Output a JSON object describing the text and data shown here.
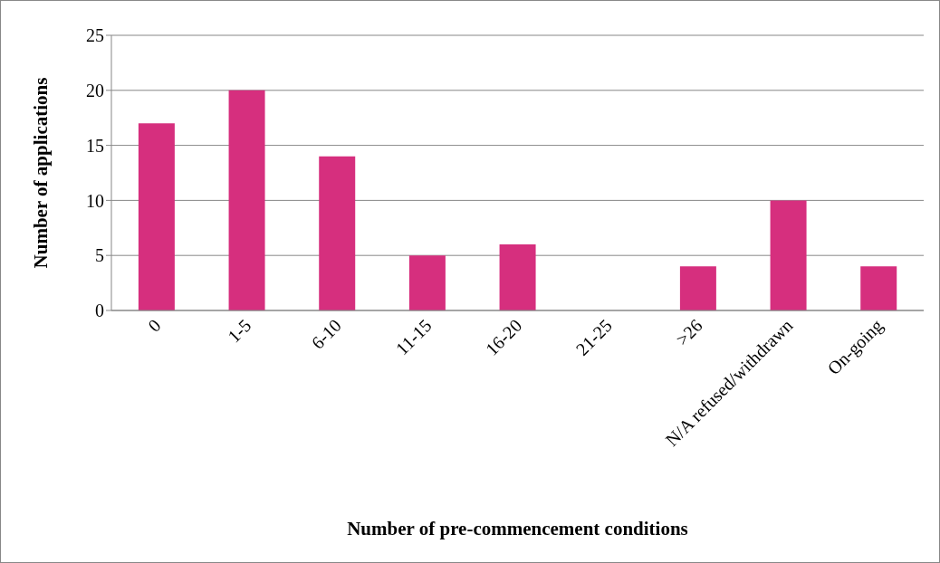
{
  "chart_data": {
    "type": "bar",
    "xlabel": "Number of pre-commencement conditions",
    "ylabel": "Number of applications",
    "categories": [
      "0",
      "1-5",
      "6-10",
      "11-15",
      "16-20",
      "21-25",
      ">26",
      "N/A refused/withdrawn",
      "On-going"
    ],
    "values": [
      17,
      20,
      14,
      5,
      6,
      0,
      4,
      10,
      4
    ],
    "color": "#d62f7e",
    "ylim": [
      0,
      25
    ],
    "yticks": [
      0,
      5,
      10,
      15,
      20,
      25
    ],
    "grid": "y"
  }
}
